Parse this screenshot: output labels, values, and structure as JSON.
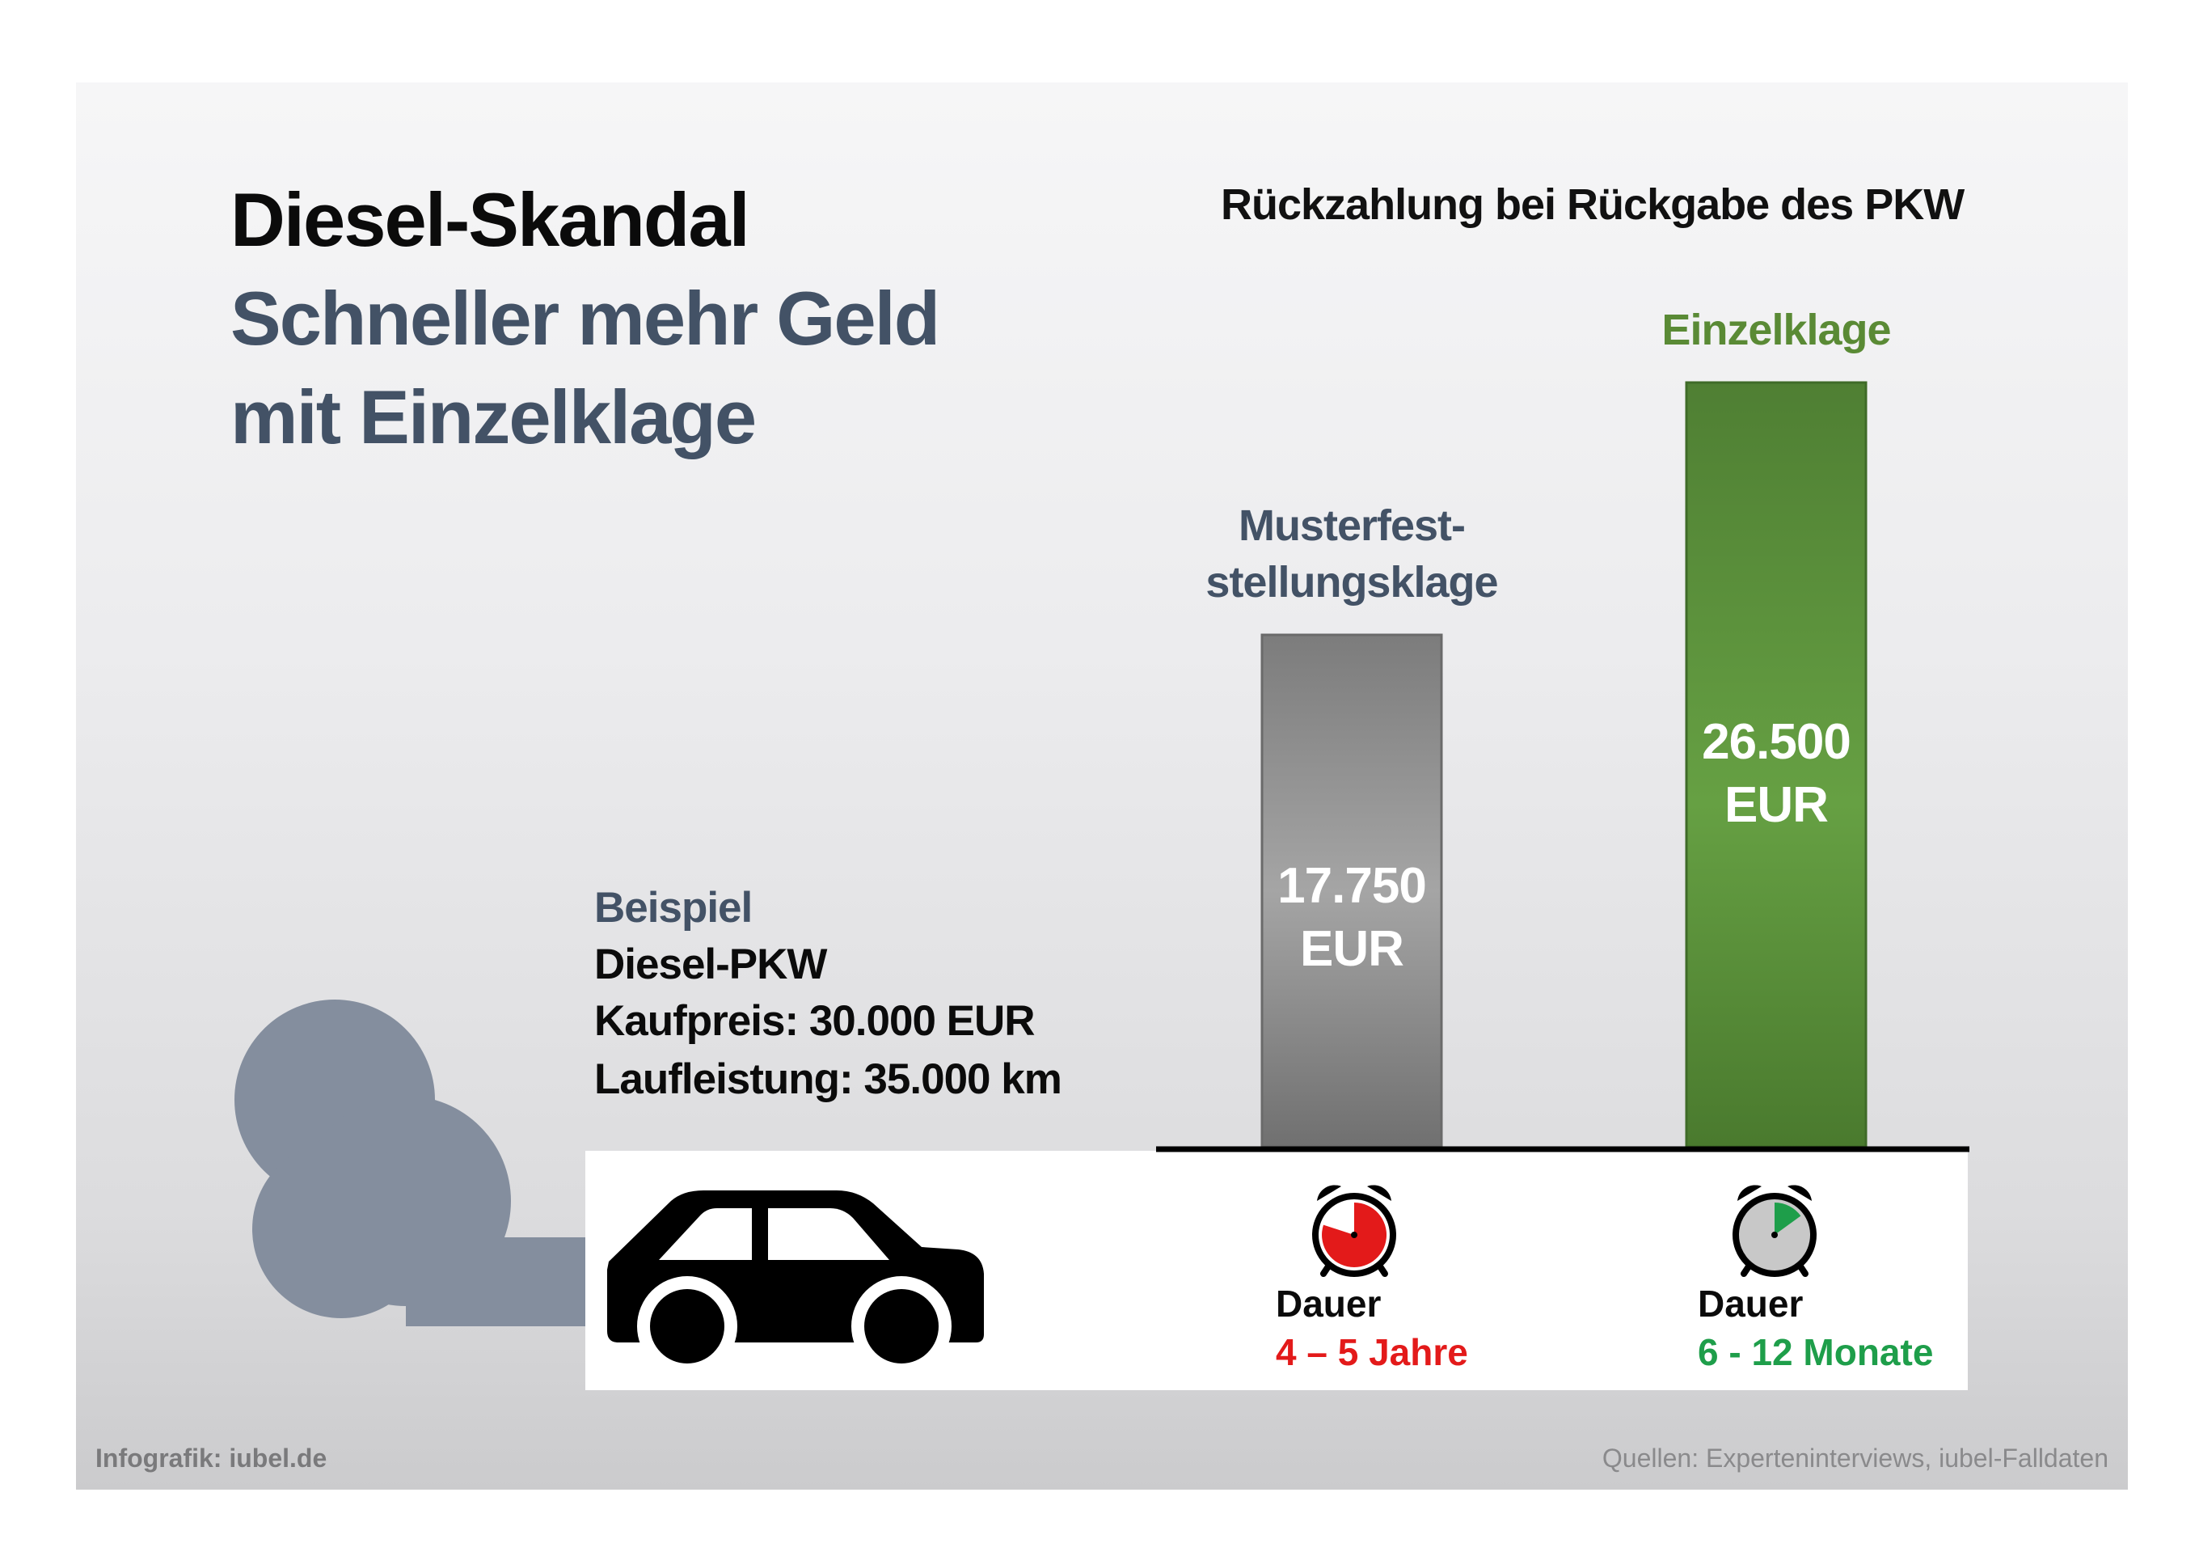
{
  "header": {
    "title": "Diesel-Skandal",
    "subtitle_line1": "Schneller mehr Geld",
    "subtitle_line2": "mit Einzelklage"
  },
  "example": {
    "label": "Beispiel",
    "line1": "Diesel-PKW",
    "line2": "Kaufpreis: 30.000 EUR",
    "line3": "Laufleistung: 35.000 km"
  },
  "chart_data": {
    "type": "bar",
    "title": "Rückzahlung bei Rückgabe des PKW",
    "categories": [
      "Musterfest-\nstellungsklage",
      "Einzelklage"
    ],
    "values": [
      17750,
      26500
    ],
    "value_labels": [
      "17.750\nEUR",
      "26.500\nEUR"
    ],
    "unit": "EUR",
    "colors": [
      "#8a8a8a",
      "#5a9a3c"
    ],
    "category_colors": [
      "#435266",
      "#5a8a35"
    ],
    "xlabel": "",
    "ylabel": "",
    "grid": false,
    "legend": "none"
  },
  "durations": [
    {
      "label": "Dauer",
      "value": "4 – 5 Jahre",
      "color": "#e31a1a",
      "icon": "alarm-clock-icon",
      "fill_fraction": 0.8
    },
    {
      "label": "Dauer",
      "value": "6 - 12 Monate",
      "color": "#1e9e4a",
      "icon": "alarm-clock-icon",
      "fill_fraction": 0.15
    }
  ],
  "footer": {
    "credit": "Infografik: iubel.de",
    "sources": "Quellen: Experteninterviews, iubel-Falldaten"
  },
  "icons": {
    "car": "car-icon",
    "smoke": "exhaust-smoke-icon"
  }
}
